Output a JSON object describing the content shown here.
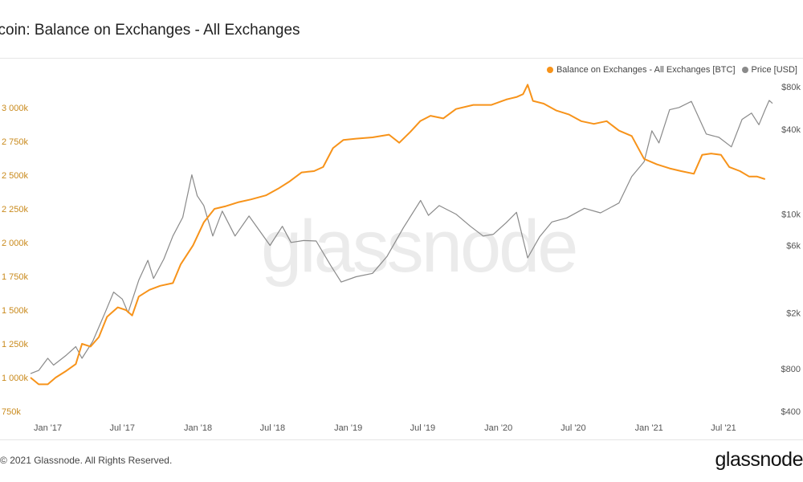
{
  "header": {
    "title": "itcoin: Balance on Exchanges - All Exchanges"
  },
  "legend": {
    "balance_label": "Balance on Exchanges - All Exchanges [BTC]",
    "price_label": "Price [USD]"
  },
  "footer": {
    "copyright": "2021 Glassnode. All Rights Reserved.",
    "logo": "glassnode"
  },
  "watermark": "glassnode",
  "colors": {
    "balance": "#f7931a",
    "price": "#8a8a8a",
    "left_axis_text": "#c98a1c",
    "right_axis_text": "#555555"
  },
  "chart_data": {
    "type": "line",
    "title": "itcoin: Balance on Exchanges - All Exchanges",
    "x_tick_labels": [
      "Jan '17",
      "Jul '17",
      "Jan '18",
      "Jul '18",
      "Jan '19",
      "Jul '19",
      "Jan '20",
      "Jul '20",
      "Jan '21",
      "Jul '21"
    ],
    "y_left": {
      "tick_labels": [
        "750k",
        "1 000k",
        "1 250k",
        "1 500k",
        "1 750k",
        "2 000k",
        "2 250k",
        "2 500k",
        "2 750k",
        "3 000k"
      ],
      "ticks": [
        750000,
        1000000,
        1250000,
        1500000,
        1750000,
        2000000,
        2250000,
        2500000,
        2750000,
        3000000
      ],
      "range": [
        750000,
        3250000
      ]
    },
    "y_right": {
      "scale": "log",
      "tick_labels": [
        "$400",
        "$800",
        "$2k",
        "$6k",
        "$10k",
        "$40k",
        "$80k"
      ],
      "ticks": [
        400,
        800,
        2000,
        6000,
        10000,
        40000,
        80000
      ],
      "range": [
        400,
        80000
      ]
    },
    "grid": false,
    "legend_position": "top-right",
    "series": [
      {
        "name": "Balance on Exchanges - All Exchanges [BTC]",
        "axis": "left",
        "color": "#f7931a",
        "points": [
          [
            "2016-11-20",
            1000000
          ],
          [
            "2016-12-10",
            950000
          ],
          [
            "2017-01-01",
            950000
          ],
          [
            "2017-01-20",
            1000000
          ],
          [
            "2017-02-15",
            1050000
          ],
          [
            "2017-03-10",
            1100000
          ],
          [
            "2017-03-25",
            1250000
          ],
          [
            "2017-04-15",
            1230000
          ],
          [
            "2017-05-05",
            1300000
          ],
          [
            "2017-05-25",
            1450000
          ],
          [
            "2017-06-20",
            1520000
          ],
          [
            "2017-07-10",
            1500000
          ],
          [
            "2017-07-25",
            1460000
          ],
          [
            "2017-08-10",
            1600000
          ],
          [
            "2017-09-05",
            1650000
          ],
          [
            "2017-10-01",
            1680000
          ],
          [
            "2017-11-01",
            1700000
          ],
          [
            "2017-11-20",
            1840000
          ],
          [
            "2017-12-20",
            1980000
          ],
          [
            "2018-01-15",
            2150000
          ],
          [
            "2018-02-10",
            2250000
          ],
          [
            "2018-03-10",
            2270000
          ],
          [
            "2018-04-10",
            2300000
          ],
          [
            "2018-05-10",
            2320000
          ],
          [
            "2018-06-15",
            2350000
          ],
          [
            "2018-07-15",
            2400000
          ],
          [
            "2018-08-10",
            2450000
          ],
          [
            "2018-09-10",
            2520000
          ],
          [
            "2018-10-10",
            2530000
          ],
          [
            "2018-11-01",
            2560000
          ],
          [
            "2018-11-25",
            2700000
          ],
          [
            "2018-12-20",
            2760000
          ],
          [
            "2019-01-20",
            2770000
          ],
          [
            "2019-03-01",
            2780000
          ],
          [
            "2019-04-10",
            2800000
          ],
          [
            "2019-05-05",
            2740000
          ],
          [
            "2019-06-01",
            2820000
          ],
          [
            "2019-06-25",
            2900000
          ],
          [
            "2019-07-20",
            2940000
          ],
          [
            "2019-08-20",
            2920000
          ],
          [
            "2019-09-20",
            2990000
          ],
          [
            "2019-11-01",
            3020000
          ],
          [
            "2019-12-15",
            3020000
          ],
          [
            "2020-01-20",
            3060000
          ],
          [
            "2020-02-15",
            3080000
          ],
          [
            "2020-03-01",
            3100000
          ],
          [
            "2020-03-12",
            3170000
          ],
          [
            "2020-03-25",
            3050000
          ],
          [
            "2020-04-20",
            3030000
          ],
          [
            "2020-05-20",
            2980000
          ],
          [
            "2020-06-20",
            2950000
          ],
          [
            "2020-07-20",
            2900000
          ],
          [
            "2020-08-20",
            2880000
          ],
          [
            "2020-09-20",
            2900000
          ],
          [
            "2020-10-20",
            2830000
          ],
          [
            "2020-11-20",
            2790000
          ],
          [
            "2020-12-20",
            2620000
          ],
          [
            "2021-01-20",
            2580000
          ],
          [
            "2021-02-20",
            2550000
          ],
          [
            "2021-03-20",
            2530000
          ],
          [
            "2021-04-20",
            2510000
          ],
          [
            "2021-05-10",
            2650000
          ],
          [
            "2021-06-01",
            2660000
          ],
          [
            "2021-06-25",
            2650000
          ],
          [
            "2021-07-15",
            2560000
          ],
          [
            "2021-08-10",
            2530000
          ],
          [
            "2021-09-01",
            2490000
          ],
          [
            "2021-09-20",
            2490000
          ],
          [
            "2021-10-10",
            2470000
          ]
        ]
      },
      {
        "name": "Price [USD]",
        "axis": "right",
        "color": "#8a8a8a",
        "points": [
          [
            "2016-11-20",
            740
          ],
          [
            "2016-12-10",
            780
          ],
          [
            "2017-01-01",
            950
          ],
          [
            "2017-01-15",
            850
          ],
          [
            "2017-02-15",
            1000
          ],
          [
            "2017-03-10",
            1150
          ],
          [
            "2017-03-25",
            950
          ],
          [
            "2017-04-20",
            1250
          ],
          [
            "2017-05-20",
            2000
          ],
          [
            "2017-06-10",
            2800
          ],
          [
            "2017-07-01",
            2500
          ],
          [
            "2017-07-15",
            2000
          ],
          [
            "2017-08-10",
            3400
          ],
          [
            "2017-09-01",
            4700
          ],
          [
            "2017-09-15",
            3500
          ],
          [
            "2017-10-10",
            4800
          ],
          [
            "2017-11-01",
            7000
          ],
          [
            "2017-11-25",
            9500
          ],
          [
            "2017-12-17",
            19000
          ],
          [
            "2017-12-30",
            13500
          ],
          [
            "2018-01-15",
            11500
          ],
          [
            "2018-02-06",
            7000
          ],
          [
            "2018-03-01",
            10500
          ],
          [
            "2018-04-01",
            7000
          ],
          [
            "2018-05-05",
            9700
          ],
          [
            "2018-06-25",
            6000
          ],
          [
            "2018-07-25",
            8200
          ],
          [
            "2018-08-15",
            6300
          ],
          [
            "2018-09-15",
            6500
          ],
          [
            "2018-10-15",
            6450
          ],
          [
            "2018-11-20",
            4300
          ],
          [
            "2018-12-15",
            3300
          ],
          [
            "2019-01-20",
            3600
          ],
          [
            "2019-03-01",
            3800
          ],
          [
            "2019-04-05",
            5000
          ],
          [
            "2019-05-15",
            8000
          ],
          [
            "2019-06-26",
            12500
          ],
          [
            "2019-07-15",
            9800
          ],
          [
            "2019-08-10",
            11500
          ],
          [
            "2019-09-20",
            10000
          ],
          [
            "2019-10-25",
            8200
          ],
          [
            "2019-11-25",
            7000
          ],
          [
            "2019-12-20",
            7200
          ],
          [
            "2020-01-20",
            8700
          ],
          [
            "2020-02-14",
            10300
          ],
          [
            "2020-03-12",
            4900
          ],
          [
            "2020-04-10",
            6900
          ],
          [
            "2020-05-10",
            8800
          ],
          [
            "2020-06-15",
            9400
          ],
          [
            "2020-07-28",
            11000
          ],
          [
            "2020-09-05",
            10200
          ],
          [
            "2020-10-20",
            12000
          ],
          [
            "2020-11-20",
            18500
          ],
          [
            "2020-12-20",
            23500
          ],
          [
            "2021-01-08",
            39000
          ],
          [
            "2021-01-25",
            32000
          ],
          [
            "2021-02-20",
            55000
          ],
          [
            "2021-03-15",
            57000
          ],
          [
            "2021-04-14",
            63000
          ],
          [
            "2021-05-20",
            37000
          ],
          [
            "2021-06-20",
            35000
          ],
          [
            "2021-07-20",
            30000
          ],
          [
            "2021-08-15",
            47000
          ],
          [
            "2021-09-07",
            52000
          ],
          [
            "2021-09-25",
            43000
          ],
          [
            "2021-10-10",
            55000
          ],
          [
            "2021-10-20",
            64000
          ],
          [
            "2021-10-28",
            61000
          ]
        ]
      }
    ]
  }
}
